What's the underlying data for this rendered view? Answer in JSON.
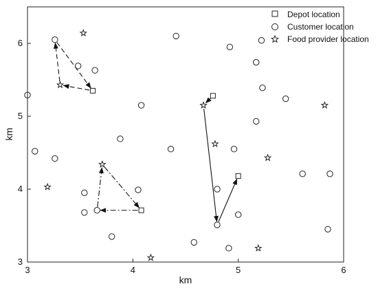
{
  "chart_data": {
    "type": "scatter",
    "title": "",
    "xlabel": "km",
    "ylabel": "km",
    "xlim": [
      3,
      6
    ],
    "ylim": [
      3,
      6.5
    ],
    "xticks": [
      "3",
      "4",
      "5",
      "6"
    ],
    "yticks": [
      "3",
      "4",
      "5",
      "6"
    ],
    "grid": false,
    "legend_position": "top-right",
    "legend": [
      "Depot location",
      "Customer location",
      "Food provider location"
    ],
    "series": [
      {
        "name": "Depot location",
        "marker": "square",
        "points": [
          [
            3.62,
            5.35
          ],
          [
            4.76,
            5.28
          ],
          [
            5.0,
            4.18
          ],
          [
            4.08,
            3.71
          ]
        ]
      },
      {
        "name": "Customer location",
        "marker": "circle",
        "points": [
          [
            3.0,
            5.29
          ],
          [
            3.26,
            6.05
          ],
          [
            3.48,
            5.69
          ],
          [
            3.64,
            5.63
          ],
          [
            3.07,
            4.52
          ],
          [
            3.26,
            4.42
          ],
          [
            3.54,
            3.95
          ],
          [
            3.54,
            3.68
          ],
          [
            3.66,
            3.71
          ],
          [
            3.8,
            3.35
          ],
          [
            3.88,
            4.69
          ],
          [
            4.08,
            5.15
          ],
          [
            4.05,
            3.99
          ],
          [
            4.36,
            4.55
          ],
          [
            4.41,
            6.1
          ],
          [
            4.58,
            3.27
          ],
          [
            4.8,
            4.0
          ],
          [
            4.8,
            3.51
          ],
          [
            4.92,
            5.95
          ],
          [
            4.96,
            4.55
          ],
          [
            5.0,
            3.65
          ],
          [
            4.91,
            3.19
          ],
          [
            5.17,
            5.74
          ],
          [
            5.22,
            6.04
          ],
          [
            5.23,
            5.39
          ],
          [
            5.17,
            4.93
          ],
          [
            5.45,
            5.24
          ],
          [
            5.61,
            4.21
          ],
          [
            5.87,
            4.21
          ],
          [
            5.85,
            3.45
          ]
        ]
      },
      {
        "name": "Food provider location",
        "marker": "star",
        "points": [
          [
            3.53,
            6.14
          ],
          [
            3.31,
            5.43
          ],
          [
            3.19,
            4.03
          ],
          [
            3.71,
            4.34
          ],
          [
            4.17,
            3.06
          ],
          [
            4.67,
            5.15
          ],
          [
            4.78,
            4.62
          ],
          [
            5.28,
            4.43
          ],
          [
            5.19,
            3.19
          ],
          [
            5.82,
            5.15
          ]
        ]
      }
    ],
    "routes": [
      {
        "style": "dashed",
        "path": [
          [
            3.62,
            5.35
          ],
          [
            3.31,
            5.43
          ],
          [
            3.26,
            6.05
          ],
          [
            3.62,
            5.35
          ]
        ]
      },
      {
        "style": "dashdot",
        "path": [
          [
            4.08,
            3.71
          ],
          [
            3.66,
            3.71
          ],
          [
            3.71,
            4.34
          ],
          [
            4.08,
            3.71
          ]
        ]
      },
      {
        "style": "solid",
        "path": [
          [
            4.76,
            5.28
          ],
          [
            4.67,
            5.15
          ],
          [
            4.8,
            3.51
          ],
          [
            5.0,
            4.18
          ]
        ]
      }
    ]
  }
}
